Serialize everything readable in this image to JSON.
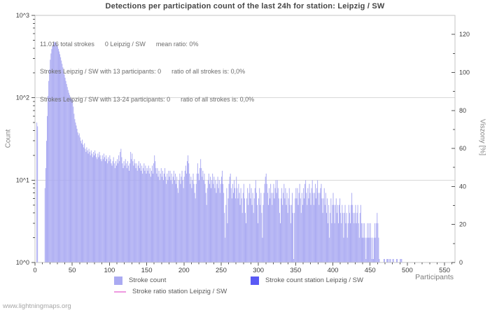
{
  "title": "Detections per participation count of the last 24h for station: Leipzig / SW",
  "annotations": [
    "11.016 total strokes      0 Leipzig / SW      mean ratio: 0%",
    "Strokes Leipzig / SW with 13 participants: 0      ratio of all strokes is: 0,0%",
    "Strokes Leipzig / SW with 13-24 participants: 0      ratio of all strokes is: 0,0%"
  ],
  "footer": "www.lightningmaps.org",
  "axes": {
    "left": {
      "label": "Count"
    },
    "right": {
      "label": "Viszony [%]"
    },
    "bottom": {
      "label": "Participants"
    }
  },
  "legend": [
    {
      "label": "Stroke count",
      "swatch": "box",
      "color": "#aaaaf2"
    },
    {
      "label": "Stroke count station Leipzig / SW",
      "swatch": "box",
      "color": "#5a5af5"
    },
    {
      "label": "Stroke ratio station Leipzig / SW",
      "swatch": "line",
      "color": "#ee99e0"
    }
  ],
  "colors": {
    "bars": "#aaaaf2",
    "station_bars": "#5a5af5",
    "ratio_line": "#ee99e0",
    "grid": "#d8d8d8",
    "border": "#c6c6c6",
    "ticks": "#555555",
    "tick_text": "#3d3d3d"
  },
  "chart_data": {
    "type": "bar",
    "title": "Detections per participation count of the last 24h for station: Leipzig / SW",
    "xlabel": "Participants",
    "ylabel_left": "Count",
    "ylabel_right": "Viszony [%]",
    "yscale_left": "log",
    "ylim_left": [
      1,
      1000
    ],
    "ylim_right": [
      0,
      130
    ],
    "xlim": [
      0,
      564
    ],
    "grid": "horizontal-log-decades",
    "legend_position": "bottom",
    "y_left_ticks": [
      "10^0",
      "10^1",
      "10^2",
      "10^3"
    ],
    "y_right_ticks": [
      0,
      20,
      40,
      60,
      80,
      100,
      120
    ],
    "x_ticks": [
      0,
      50,
      100,
      150,
      200,
      250,
      300,
      350,
      400,
      450,
      500,
      550
    ],
    "x_minor_tick_step": 10,
    "series": [
      {
        "name": "Stroke count",
        "color": "#aaaaf2",
        "x_start": 0,
        "x_step": 1,
        "counts": [
          0,
          0,
          50,
          45,
          0,
          0,
          0,
          0,
          0,
          0,
          0,
          0,
          0,
          8,
          14,
          30,
          60,
          105,
          160,
          220,
          290,
          345,
          390,
          425,
          450,
          468,
          480,
          472,
          458,
          440,
          418,
          392,
          365,
          338,
          310,
          283,
          258,
          234,
          212,
          192,
          175,
          160,
          147,
          135,
          124,
          115,
          108,
          102,
          98,
          96,
          95,
          78,
          64,
          55,
          50,
          46,
          42,
          38,
          35,
          37,
          33,
          30,
          28,
          31,
          27,
          25,
          28,
          24,
          22,
          25,
          23,
          21,
          24,
          22,
          20,
          23,
          21,
          19,
          22,
          20,
          23,
          21,
          19,
          18,
          21,
          19,
          22,
          20,
          18,
          17,
          20,
          18,
          21,
          19,
          17,
          20,
          18,
          16,
          19,
          17,
          20,
          18,
          16,
          15,
          17,
          19,
          16,
          14,
          17,
          15,
          18,
          16,
          20,
          17,
          22,
          24,
          19,
          16,
          14,
          17,
          15,
          18,
          16,
          14,
          17,
          15,
          13,
          16,
          22,
          18,
          21,
          17,
          15,
          18,
          16,
          14,
          16,
          13,
          15,
          17,
          14,
          16,
          13,
          15,
          12,
          14,
          16,
          13,
          15,
          12,
          14,
          13,
          15,
          12,
          14,
          11,
          13,
          15,
          12,
          16,
          20,
          17,
          14,
          12,
          14,
          11,
          13,
          10,
          12,
          14,
          11,
          13,
          10,
          12,
          14,
          11,
          9,
          12,
          10,
          13,
          11,
          13,
          10,
          12,
          9,
          11,
          13,
          10,
          12,
          9,
          11,
          8,
          7,
          10,
          12,
          9,
          11,
          13,
          10,
          8,
          11,
          13,
          15,
          12,
          17,
          20,
          16,
          12,
          9,
          11,
          8,
          10,
          12,
          9,
          7,
          6,
          9,
          12,
          16,
          12,
          10,
          14,
          18,
          14,
          11,
          13,
          10,
          12,
          9,
          7,
          5,
          8,
          10,
          12,
          9,
          11,
          8,
          10,
          12,
          9,
          11,
          8,
          10,
          7,
          9,
          11,
          8,
          10,
          7,
          9,
          11,
          13,
          9,
          7,
          4,
          2,
          5,
          8,
          3,
          6,
          9,
          11,
          12,
          8,
          6,
          9,
          7,
          10,
          8,
          6,
          11,
          8,
          6,
          9,
          7,
          5,
          8,
          6,
          4,
          7,
          9,
          6,
          4,
          3,
          6,
          8,
          5,
          7,
          9,
          6,
          8,
          5,
          7,
          4,
          6,
          8,
          10,
          7,
          5,
          3,
          6,
          8,
          5,
          7,
          4,
          2,
          5,
          7,
          9,
          11,
          12,
          9,
          7,
          5,
          8,
          6,
          9,
          7,
          5,
          7,
          9,
          6,
          8,
          10,
          7,
          10,
          8,
          6,
          4,
          3,
          6,
          8,
          5,
          7,
          9,
          6,
          8,
          5,
          7,
          4,
          6,
          8,
          5,
          3,
          5,
          7,
          4,
          1,
          4,
          6,
          8,
          6,
          8,
          5,
          7,
          9,
          6,
          4,
          7,
          5,
          8,
          6,
          9,
          10,
          7,
          5,
          8,
          6,
          9,
          7,
          5,
          8,
          10,
          7,
          5,
          7,
          9,
          6,
          8,
          10,
          7,
          5,
          7,
          8,
          9,
          6,
          4,
          6,
          8,
          5,
          7,
          4,
          6,
          3,
          5,
          2,
          4,
          6,
          3,
          5,
          7,
          5,
          3,
          5,
          6,
          4,
          5,
          3,
          5,
          6,
          4,
          3,
          5,
          4,
          2,
          4,
          5,
          3,
          4,
          2,
          3,
          5,
          4,
          3,
          5,
          7,
          5,
          4,
          3,
          4,
          5,
          3,
          4,
          5,
          3,
          2,
          4,
          5,
          3,
          2,
          3,
          2,
          3,
          2,
          1,
          2,
          3,
          2,
          3,
          2,
          3,
          2,
          1,
          2,
          1,
          2,
          3,
          2,
          3,
          4,
          3,
          2,
          1,
          0,
          0,
          0,
          0,
          0,
          1,
          1,
          0,
          0,
          1,
          1,
          1,
          0,
          1,
          1,
          0,
          0,
          1,
          1,
          0,
          0,
          0,
          1,
          1,
          0,
          0,
          0,
          1,
          1,
          1,
          0,
          0,
          0,
          0,
          0,
          0,
          0,
          0
        ]
      },
      {
        "name": "Stroke count station Leipzig / SW",
        "color": "#5a5af5",
        "x_start": 0,
        "x_step": 1,
        "constant_value": 0
      },
      {
        "name": "Stroke ratio station Leipzig / SW",
        "type": "line",
        "color": "#ee99e0",
        "unit": "percent",
        "constant_value": 0
      }
    ]
  }
}
